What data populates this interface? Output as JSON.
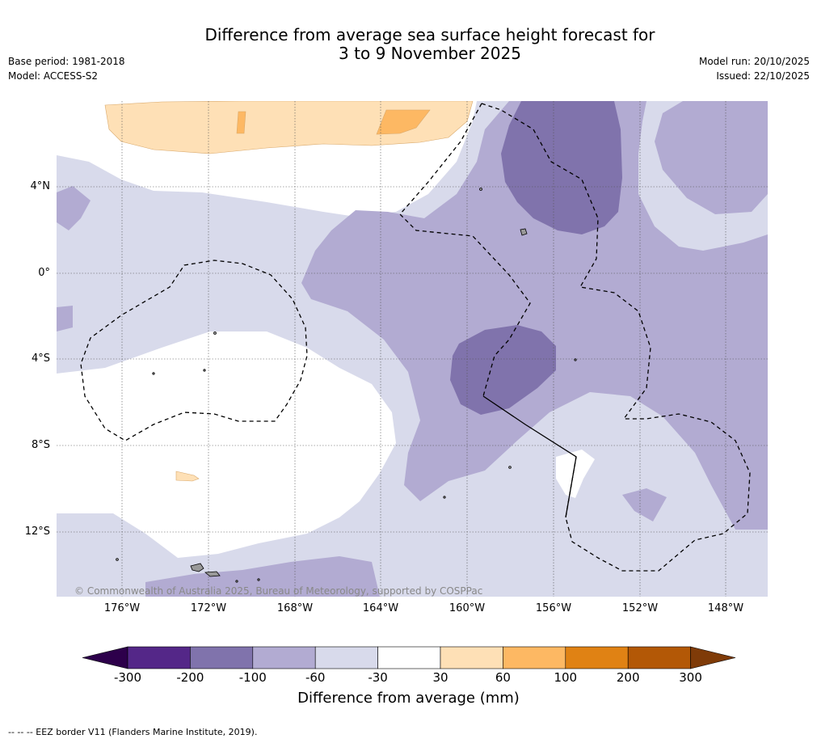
{
  "header": {
    "title_line1": "Difference from average sea surface height forecast for",
    "title_line2": "3 to 9 November 2025",
    "base_period": "Base period: 1981-2018",
    "model": "Model: ACCESS-S2",
    "model_run": "Model run: 20/10/2025",
    "issued": "Issued: 22/10/2025"
  },
  "map": {
    "lat_labels": [
      "4°N",
      "0°",
      "4°S",
      "8°S",
      "12°S"
    ],
    "lon_labels": [
      "176°W",
      "172°W",
      "168°W",
      "164°W",
      "160°W",
      "156°W",
      "152°W",
      "148°W"
    ],
    "copyright": "© Commonwealth of Australia 2025, Bureau of Meteorology, supported by COSPPac"
  },
  "colorbar": {
    "ticks": [
      "-300",
      "-200",
      "-100",
      "-60",
      "-30",
      "30",
      "60",
      "100",
      "200",
      "300"
    ],
    "colors": [
      "#542788",
      "#8073ac",
      "#b2abd2",
      "#d8daeb",
      "#ffffff",
      "#fee0b6",
      "#fdb863",
      "#e08214",
      "#b35806"
    ],
    "low_extend_color": "#2d004b",
    "high_extend_color": "#7f3b08",
    "label": "Difference from average (mm)"
  },
  "footer": {
    "eez_note": "-- -- -- EEZ border V11 (Flanders Marine Institute, 2019)."
  }
}
